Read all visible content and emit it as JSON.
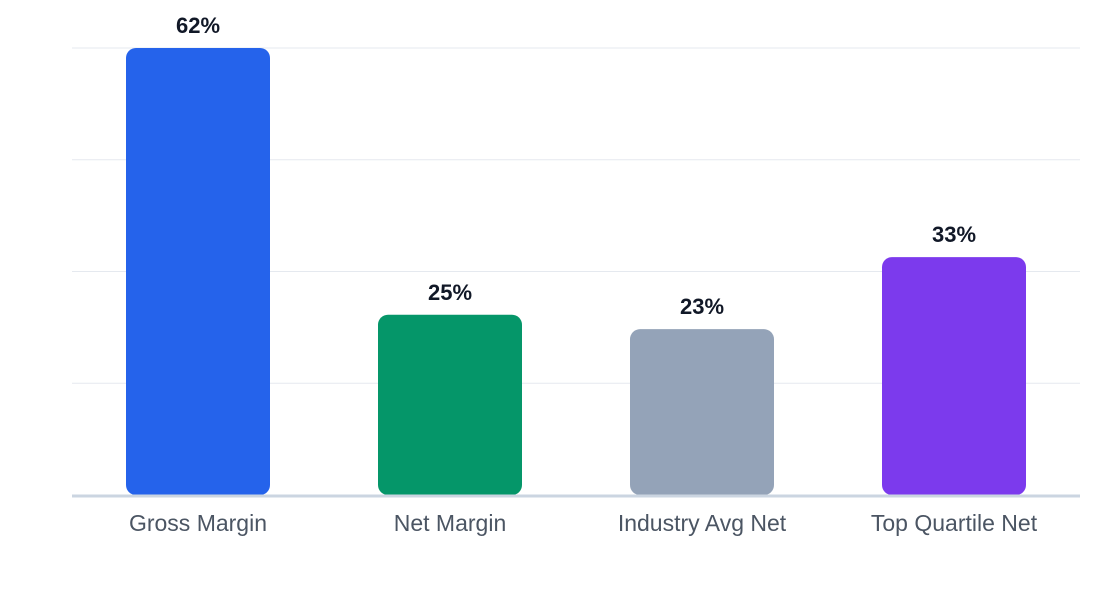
{
  "chart_data": {
    "type": "bar",
    "title": "",
    "xlabel": "",
    "ylabel": "",
    "categories": [
      "Gross Margin",
      "Net Margin",
      "Industry Avg Net",
      "Top Quartile Net"
    ],
    "values": [
      62,
      25,
      23,
      33
    ],
    "value_labels": [
      "62%",
      "25%",
      "23%",
      "33%"
    ],
    "ylim": [
      0,
      62
    ],
    "y_gridlines": [
      0,
      15.5,
      31,
      46.5,
      62
    ],
    "grid": true,
    "legend": "none",
    "colors": [
      "#2563eb",
      "#059669",
      "#94a3b8",
      "#7c3aed"
    ]
  }
}
